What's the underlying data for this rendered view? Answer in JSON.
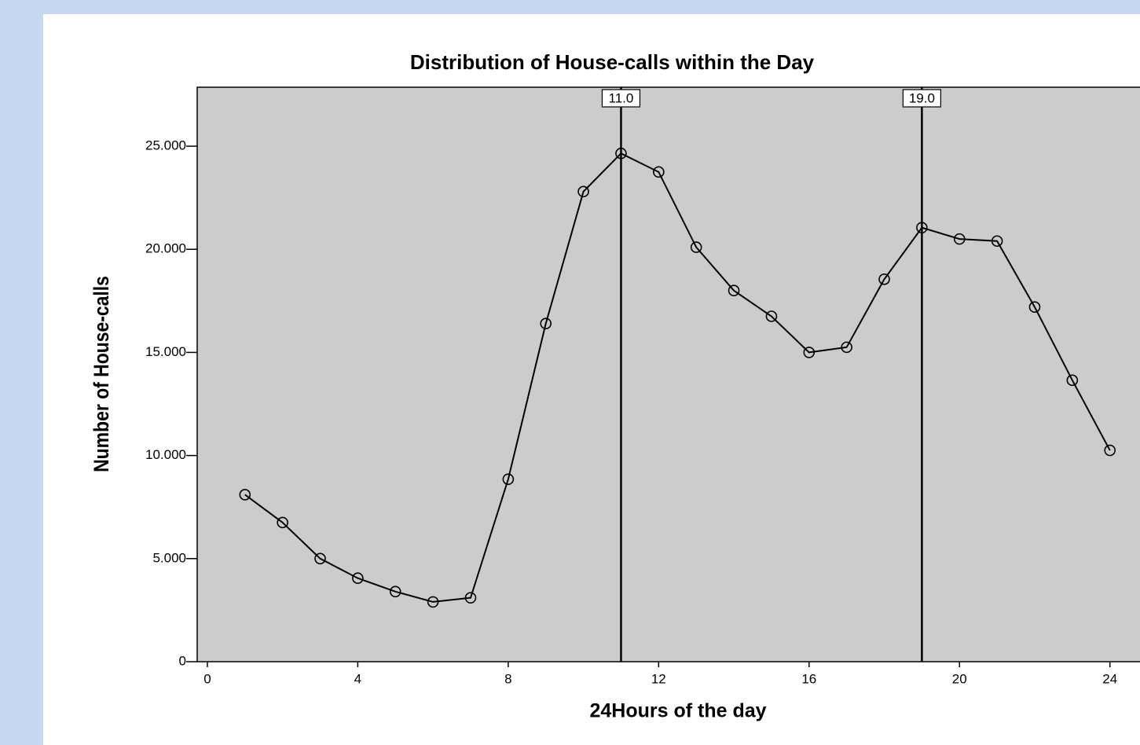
{
  "chart_data": {
    "type": "line",
    "title": "Distribution of House-calls within the Day",
    "x_label": "24Hours of the day",
    "y_label": "Number of House-calls",
    "x": [
      1,
      2,
      3,
      4,
      5,
      6,
      7,
      8,
      9,
      10,
      11,
      12,
      13,
      14,
      15,
      16,
      17,
      18,
      19,
      20,
      21,
      22,
      23,
      24
    ],
    "series": [
      {
        "color": "#000000",
        "values": [
          8100,
          6750,
          5000,
          4050,
          3400,
          2900,
          3100,
          8850,
          16400,
          22800,
          24650,
          23750,
          20100,
          18000,
          16750,
          15000,
          15250,
          18550,
          21050,
          20500,
          20400,
          17200,
          13650,
          10250
        ]
      }
    ],
    "xlim": [
      -0.27,
      24.8
    ],
    "xticks": [
      0,
      4,
      8,
      12,
      16,
      20,
      24
    ],
    "ylim": [
      0,
      27860
    ],
    "yticks": [
      0,
      {
        "value": 5000,
        "label": "5.000"
      },
      {
        "value": 10000,
        "label": "10.000"
      },
      {
        "value": 15000,
        "label": "15.000"
      },
      {
        "value": 20000,
        "label": "20.000"
      },
      {
        "value": 25000,
        "label": "25.000"
      }
    ],
    "reference_lines": [
      {
        "value": 11,
        "label": "11.0"
      },
      {
        "value": 19,
        "label": "19.0"
      }
    ],
    "plot_background": "#cccccc"
  }
}
